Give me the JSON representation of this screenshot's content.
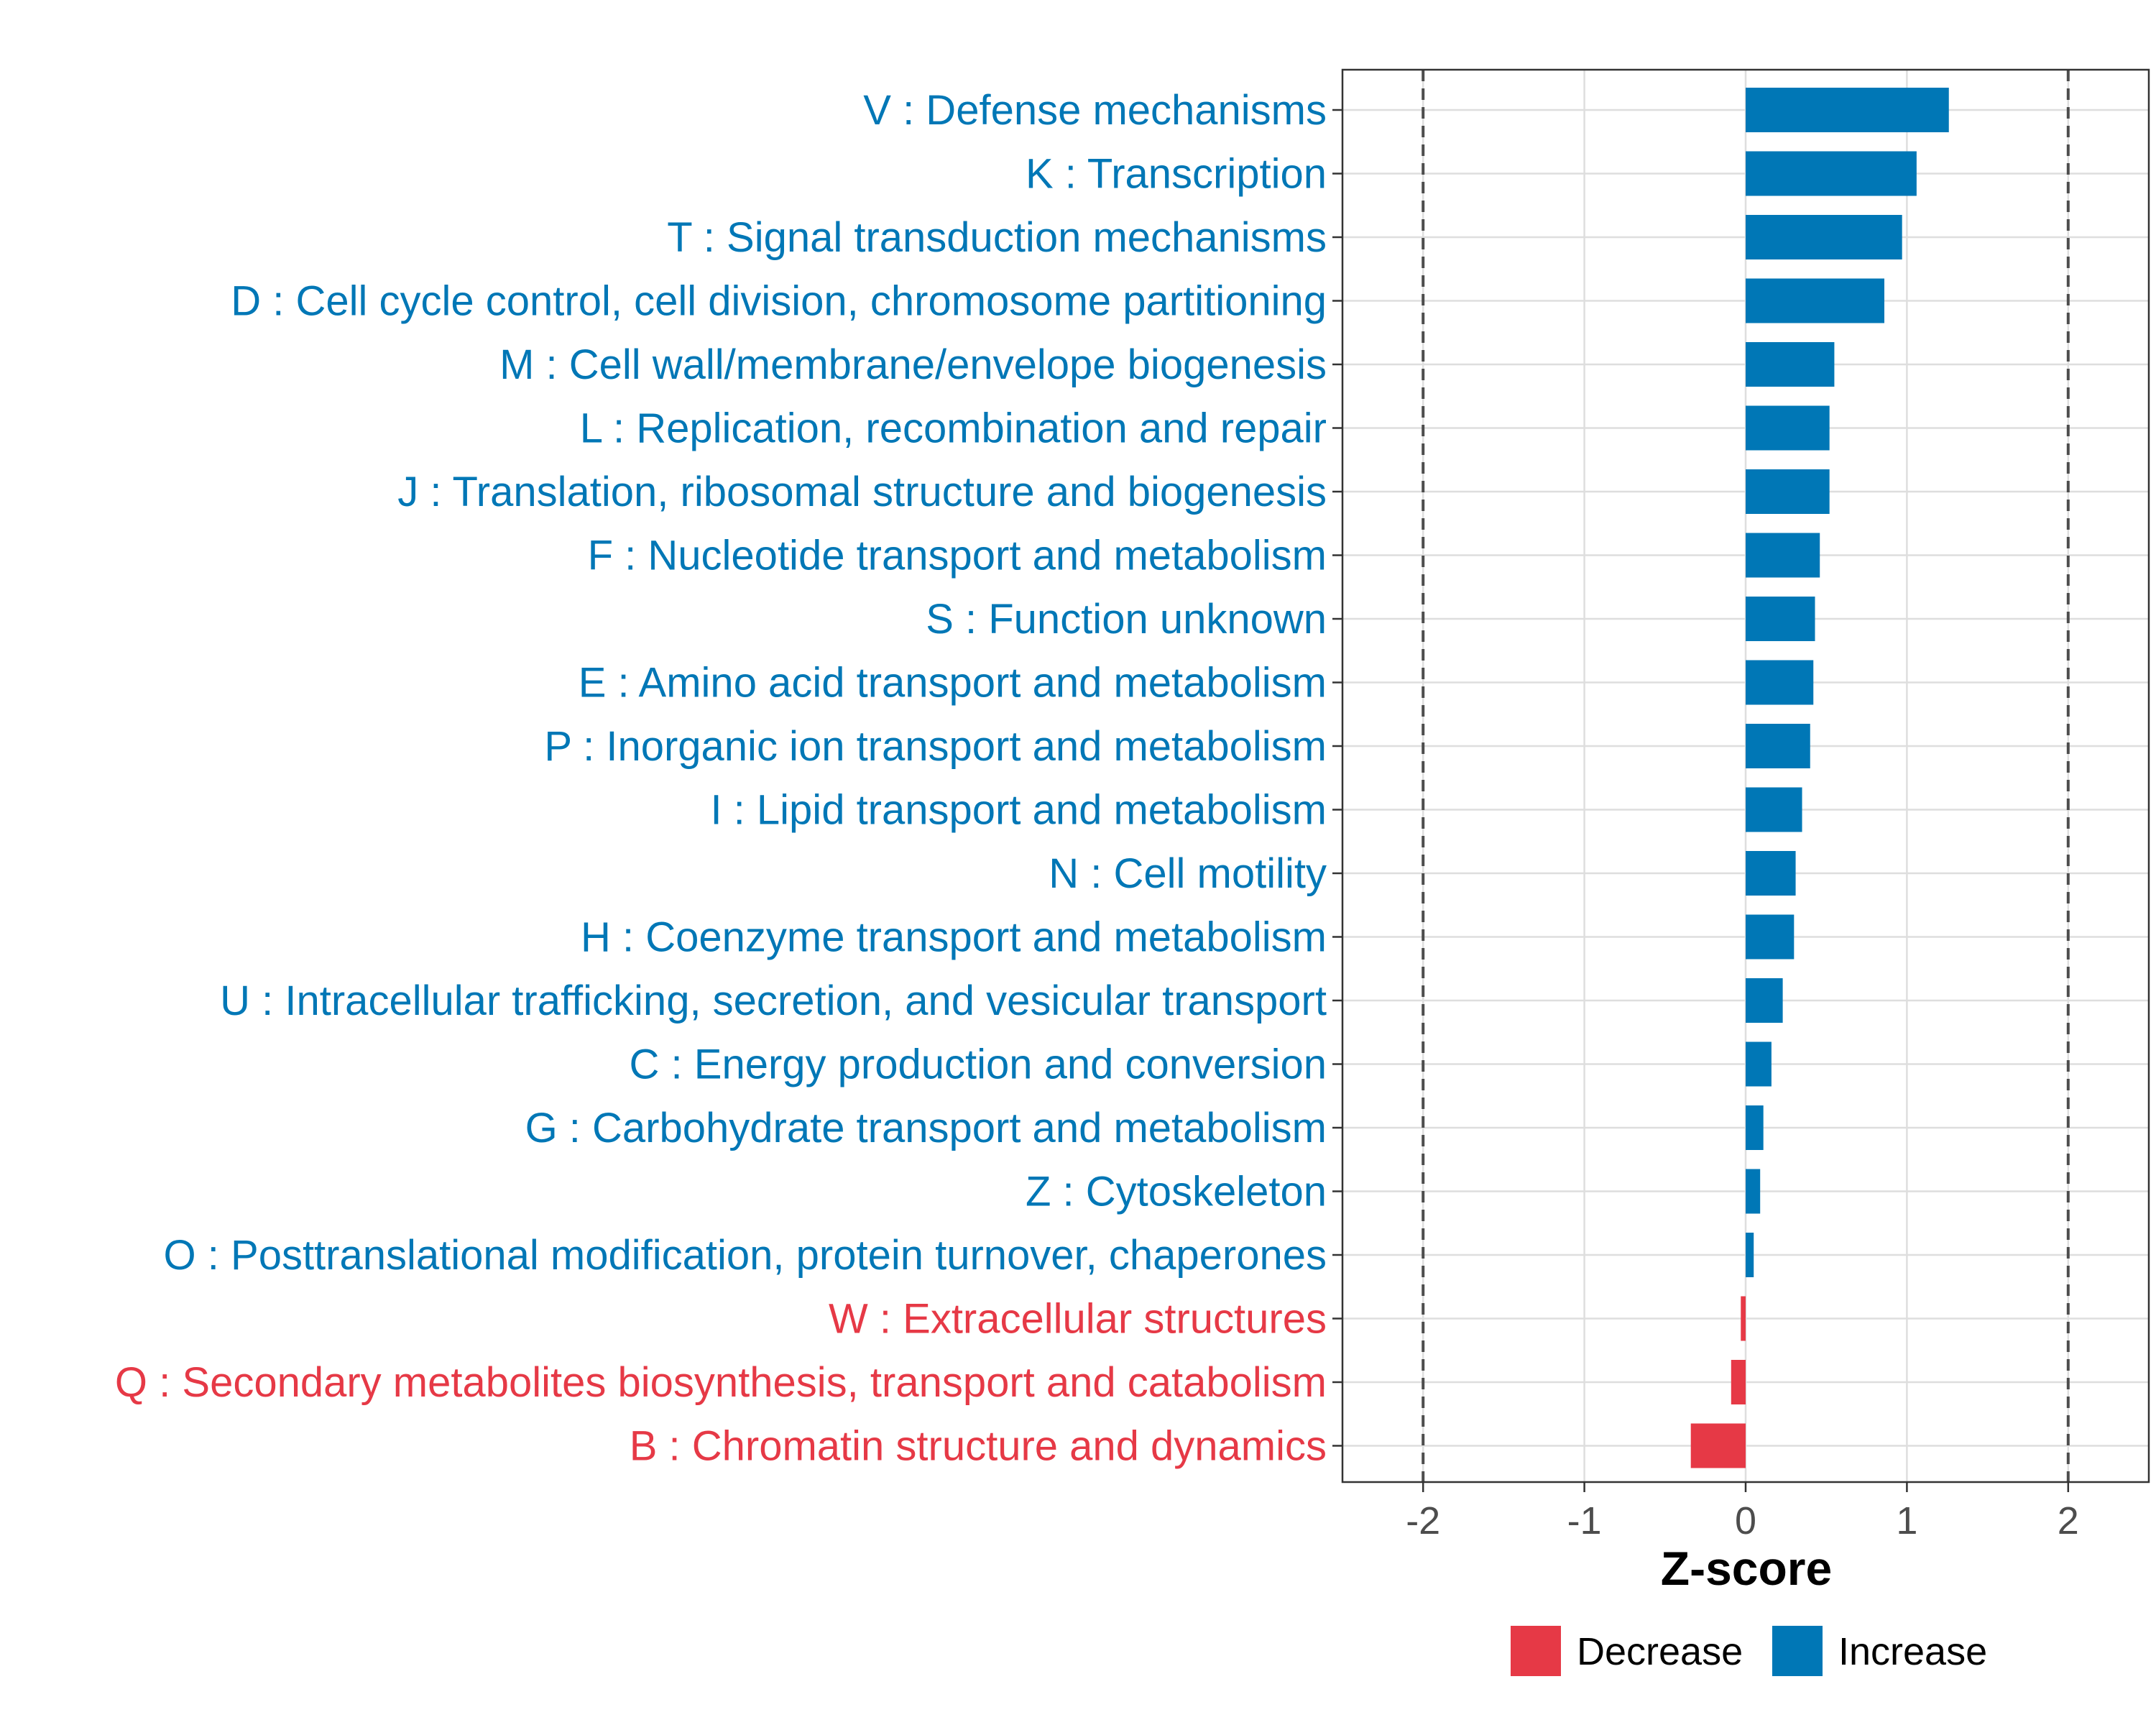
{
  "chart_data": {
    "type": "bar",
    "orientation": "horizontal",
    "xlabel": "Z-score",
    "ylabel": "",
    "xlim": [
      -2.5,
      2.5
    ],
    "x_ticks": [
      -2,
      -1,
      0,
      1,
      2
    ],
    "x_tick_labels": [
      "-2",
      "-1",
      "0",
      "1",
      "2"
    ],
    "reference_lines": [
      -2,
      2
    ],
    "grid": true,
    "legend_position": "bottom",
    "colors": {
      "Decrease": "#E63946",
      "Increase": "#0077B6"
    },
    "legend": [
      {
        "label": "Decrease",
        "color": "#E63946"
      },
      {
        "label": "Increase",
        "color": "#0077B6"
      }
    ],
    "categories": [
      "V : Defense mechanisms",
      "K : Transcription",
      "T : Signal transduction mechanisms",
      "D : Cell cycle control, cell division, chromosome partitioning",
      "M : Cell wall/membrane/envelope biogenesis",
      "L : Replication, recombination and repair",
      "J : Translation, ribosomal structure and biogenesis",
      "F : Nucleotide transport and metabolism",
      "S : Function unknown",
      "E : Amino acid transport and metabolism",
      "P : Inorganic ion transport and metabolism",
      "I : Lipid transport and metabolism",
      "N : Cell motility",
      "H : Coenzyme transport and metabolism",
      "U : Intracellular trafficking, secretion, and vesicular transport",
      "C : Energy production and conversion",
      "G : Carbohydrate transport and metabolism",
      "Z : Cytoskeleton",
      "O : Posttranslational modification, protein turnover, chaperones",
      "W : Extracellular structures",
      "Q : Secondary metabolites biosynthesis, transport and catabolism",
      "B : Chromatin structure and dynamics"
    ],
    "values": [
      1.26,
      1.06,
      0.97,
      0.86,
      0.55,
      0.52,
      0.52,
      0.46,
      0.43,
      0.42,
      0.4,
      0.35,
      0.31,
      0.3,
      0.23,
      0.16,
      0.11,
      0.09,
      0.05,
      -0.03,
      -0.09,
      -0.34
    ],
    "groups": [
      "Increase",
      "Increase",
      "Increase",
      "Increase",
      "Increase",
      "Increase",
      "Increase",
      "Increase",
      "Increase",
      "Increase",
      "Increase",
      "Increase",
      "Increase",
      "Increase",
      "Increase",
      "Increase",
      "Increase",
      "Increase",
      "Increase",
      "Decrease",
      "Decrease",
      "Decrease"
    ]
  }
}
